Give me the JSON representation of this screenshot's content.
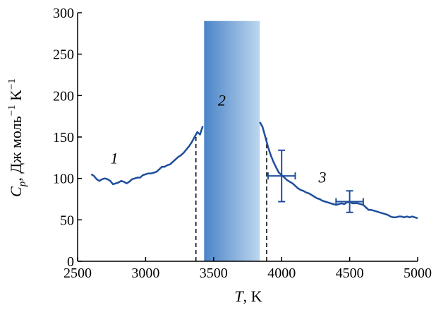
{
  "chart_data": {
    "type": "line",
    "title": "",
    "xlabel": {
      "var": "T",
      "unit": ", K"
    },
    "ylabel": {
      "var": "C",
      "sub": "p",
      "unit": ", Дж моль",
      "exp1": "−1",
      "unit2": " K",
      "exp2": "−1"
    },
    "xlim": [
      2500,
      5000
    ],
    "ylim": [
      0,
      300
    ],
    "xticks": [
      2500,
      3000,
      3500,
      4000,
      4500,
      5000
    ],
    "yticks": [
      0,
      50,
      100,
      150,
      200,
      250,
      300
    ],
    "grid": false,
    "line_color": "#1f4e9c",
    "series": [
      {
        "segment": "left",
        "x": [
          2600,
          2620,
          2640,
          2660,
          2680,
          2700,
          2720,
          2740,
          2760,
          2780,
          2800,
          2820,
          2840,
          2860,
          2880,
          2900,
          2920,
          2940,
          2960,
          2980,
          3000,
          3020,
          3040,
          3060,
          3080,
          3100,
          3120,
          3140,
          3160,
          3180,
          3200,
          3220,
          3240,
          3260,
          3280,
          3300,
          3320,
          3340,
          3360,
          3380,
          3400,
          3420
        ],
        "y": [
          105,
          103,
          99,
          97,
          99,
          100,
          99,
          97,
          93,
          94,
          95,
          97,
          96,
          94,
          96,
          99,
          100,
          101,
          101,
          104,
          105,
          106,
          106,
          107,
          108,
          111,
          114,
          114,
          116,
          117,
          120,
          123,
          126,
          128,
          131,
          135,
          139,
          144,
          150,
          156,
          153,
          163
        ]
      },
      {
        "segment": "right",
        "x": [
          3840,
          3860,
          3880,
          3900,
          3920,
          3940,
          3960,
          3980,
          4000,
          4020,
          4040,
          4060,
          4080,
          4100,
          4120,
          4140,
          4160,
          4180,
          4200,
          4220,
          4240,
          4260,
          4280,
          4300,
          4320,
          4340,
          4360,
          4380,
          4400,
          4420,
          4440,
          4460,
          4480,
          4500,
          4520,
          4540,
          4560,
          4580,
          4600,
          4620,
          4640,
          4660,
          4680,
          4700,
          4720,
          4740,
          4760,
          4780,
          4800,
          4820,
          4840,
          4860,
          4880,
          4900,
          4920,
          4940,
          4960,
          4980,
          5000
        ],
        "y": [
          168,
          162,
          150,
          138,
          128,
          120,
          113,
          107,
          104,
          101,
          98,
          96,
          94,
          91,
          88,
          86,
          85,
          83,
          82,
          80,
          78,
          76,
          75,
          73,
          72,
          71,
          70,
          69,
          68,
          69,
          70,
          69,
          71,
          72,
          70,
          70,
          70,
          69,
          68,
          65,
          62,
          62,
          61,
          60,
          59,
          58,
          57,
          56,
          54,
          53,
          53,
          54,
          54,
          53,
          54,
          53,
          54,
          53,
          52
        ]
      }
    ],
    "shaded_region": {
      "x": [
        3430,
        3840
      ],
      "y": [
        0,
        290
      ],
      "color_left": "#4a84c8",
      "color_right": "#bdd7ee"
    },
    "vlines": [
      {
        "x": 3370,
        "y_top": 153
      },
      {
        "x": 3890,
        "y_top": 149
      }
    ],
    "error_bars": [
      {
        "x": 4000,
        "y": 103,
        "xerr": 100,
        "yerr": 31
      },
      {
        "x": 4500,
        "y": 72,
        "xerr": 100,
        "yerr": 13
      }
    ],
    "annotations": [
      {
        "text": "1",
        "x": 2770,
        "y": 118
      },
      {
        "text": "2",
        "x": 3560,
        "y": 188
      },
      {
        "text": "3",
        "x": 4300,
        "y": 95
      }
    ]
  }
}
